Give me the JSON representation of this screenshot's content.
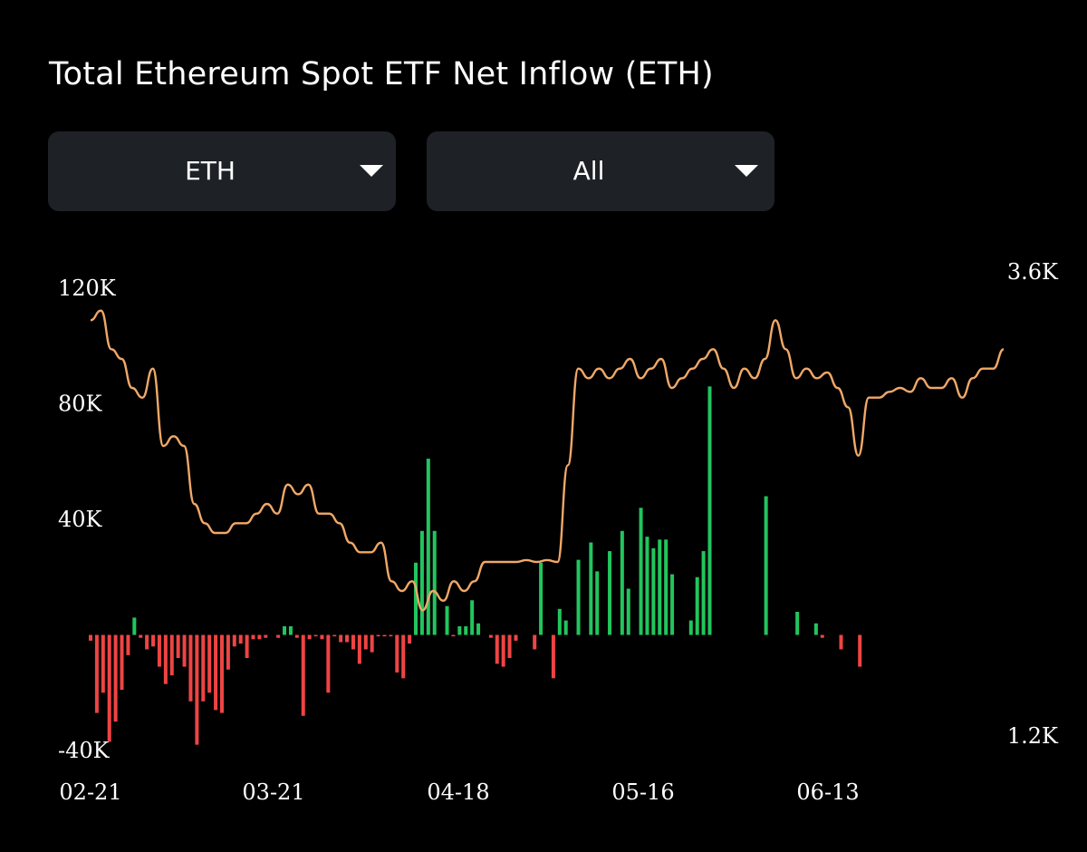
{
  "title": "Total Ethereum Spot ETF Net Inflow (ETH)",
  "selectors": {
    "asset": {
      "value": "ETH",
      "icon": "caret-down-icon"
    },
    "range": {
      "value": "All",
      "icon": "caret-down-icon"
    }
  },
  "colors": {
    "positive": "#22c55e",
    "negative": "#ef4444",
    "line": "#f0a868",
    "panel": "#1e2126",
    "background": "#000000"
  },
  "chart_data": {
    "type": "bar",
    "title": "Total Ethereum Spot ETF Net Inflow (ETH)",
    "xlabel": "",
    "ylabel": "",
    "grid": false,
    "legend": "none",
    "left_axis": {
      "ylim": [
        -40000,
        120000
      ],
      "ticks": [
        "120K",
        "80K",
        "40K",
        "-40K"
      ],
      "tick_values": [
        120000,
        80000,
        40000,
        -40000
      ]
    },
    "right_axis": {
      "ylim": [
        1200,
        3600
      ],
      "ticks": [
        "3.6K",
        "1.2K"
      ],
      "tick_values": [
        3600,
        1200
      ]
    },
    "x_ticks": [
      {
        "label": "02-21",
        "index": 0
      },
      {
        "label": "03-21",
        "index": 20
      },
      {
        "label": "04-18",
        "index": 40
      },
      {
        "label": "05-16",
        "index": 60
      },
      {
        "label": "06-13",
        "index": 80
      }
    ],
    "series": [
      {
        "type": "bar",
        "axis": "left",
        "values": [
          -2000,
          -27000,
          -20000,
          -37000,
          -30000,
          -19000,
          -7000,
          6000,
          -1000,
          -5000,
          -4000,
          -11000,
          -17000,
          -14000,
          -8000,
          -11000,
          -23000,
          -38000,
          -23000,
          -20000,
          -26000,
          -27000,
          -12000,
          -4000,
          -3000,
          -8000,
          -1500,
          -1500,
          -1000,
          0,
          -1000,
          3000,
          3000,
          -1000,
          -28000,
          -1500,
          -500,
          -1500,
          -20000,
          -500,
          -2500,
          -2500,
          -5000,
          -10000,
          -5000,
          -6000,
          -500,
          -500,
          -500,
          -13000,
          -15000,
          -3000,
          25000,
          36000,
          61000,
          36000,
          0,
          10000,
          -500,
          3000,
          3000,
          12000,
          4000,
          0,
          -1000,
          -10000,
          -11000,
          -8000,
          -2000,
          0,
          0,
          -5000,
          25000,
          0,
          -15000,
          9000,
          5000,
          0,
          26000,
          0,
          32000,
          22000,
          0,
          29000,
          0,
          36000,
          16000,
          0,
          44000,
          34000,
          30000,
          33000,
          33000,
          21000,
          0,
          0,
          5000,
          20000,
          29000,
          86000,
          0,
          0,
          0,
          0,
          0,
          0,
          0,
          0,
          48000,
          0,
          0,
          0,
          0,
          8000,
          0,
          0,
          4000,
          -1000,
          0,
          0,
          -5000,
          0,
          0,
          -11000,
          0,
          0,
          0,
          0,
          0,
          0,
          0,
          0,
          0,
          0,
          0,
          0,
          0,
          0,
          0,
          0,
          0,
          0,
          0,
          0,
          0,
          0,
          0
        ],
        "note_values_visible": false
      },
      {
        "type": "line",
        "axis": "right",
        "values": [
          3350,
          3400,
          3200,
          3150,
          3000,
          2950,
          3100,
          2700,
          2750,
          2700,
          2400,
          2300,
          2250,
          2250,
          2300,
          2300,
          2350,
          2400,
          2350,
          2500,
          2450,
          2500,
          2350,
          2350,
          2300,
          2200,
          2150,
          2150,
          2200,
          2000,
          1950,
          2000,
          1850,
          1950,
          1900,
          2000,
          1950,
          2000,
          2100,
          2100,
          2100,
          2100,
          2110,
          2100,
          2110,
          2100,
          2600,
          3100,
          3050,
          3100,
          3050,
          3100,
          3150,
          3050,
          3100,
          3150,
          3000,
          3050,
          3100,
          3150,
          3200,
          3100,
          3000,
          3100,
          3050,
          3150,
          3350,
          3200,
          3050,
          3100,
          3050,
          3080,
          3000,
          2900,
          2650,
          2950,
          2950,
          2980,
          3000,
          2980,
          3050,
          3000,
          3000,
          3050,
          2950,
          3050,
          3100,
          3100,
          3200
        ]
      }
    ]
  }
}
